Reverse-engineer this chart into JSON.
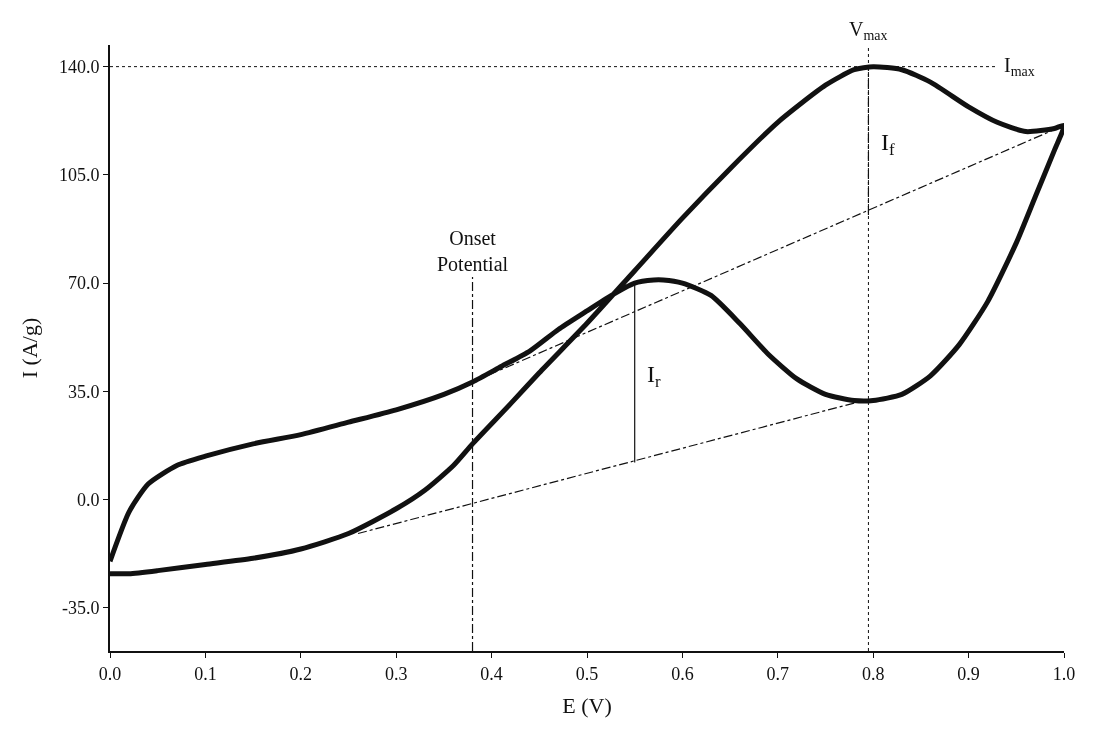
{
  "chart_data": {
    "type": "line",
    "xlabel": "E (V)",
    "ylabel": "I (A/g)",
    "xlim": [
      0,
      1.0
    ],
    "xticks": [
      {
        "value": 0,
        "label": "0.0"
      },
      0.1,
      0.2,
      0.3,
      0.4,
      0.5,
      0.6,
      0.7,
      0.8,
      0.9,
      {
        "value": 1.0,
        "label": "1.0"
      }
    ],
    "ylim": [
      -49,
      147
    ],
    "yticks": [
      {
        "value": -35,
        "label": "-35.0"
      },
      {
        "value": 0,
        "label": "0.0"
      },
      {
        "value": 35,
        "label": "35.0"
      },
      {
        "value": 70,
        "label": "70.0"
      },
      {
        "value": 105,
        "label": "105.0"
      },
      {
        "value": 140,
        "label": "140.0"
      }
    ],
    "marker": "none",
    "series": [
      {
        "color": "#111111",
        "line_style": "solid",
        "x": [
          0.0,
          0.02,
          0.05,
          0.1,
          0.15,
          0.2,
          0.25,
          0.3,
          0.33,
          0.36,
          0.38,
          0.42,
          0.45,
          0.5,
          0.55,
          0.6,
          0.65,
          0.7,
          0.75,
          0.78,
          0.8,
          0.83,
          0.86,
          0.9,
          0.93,
          0.96,
          0.99,
          1.0,
          0.99,
          0.97,
          0.95,
          0.92,
          0.89,
          0.86,
          0.83,
          0.8,
          0.78,
          0.75,
          0.72,
          0.69,
          0.66,
          0.63,
          0.6,
          0.58,
          0.57,
          0.55,
          0.52,
          0.5,
          0.47,
          0.44,
          0.41,
          0.38,
          0.35,
          0.3,
          0.25,
          0.2,
          0.15,
          0.1,
          0.07,
          0.04,
          0.02,
          0.0
        ],
        "values": [
          -24,
          -24,
          -23,
          -21,
          -19,
          -16,
          -11,
          -3,
          3,
          11,
          18,
          31,
          41,
          57,
          74,
          91,
          107,
          122,
          134,
          139,
          140,
          139,
          135,
          127,
          122,
          119,
          120,
          121,
          113,
          98,
          83,
          64,
          50,
          40,
          34,
          32,
          32,
          34,
          39,
          47,
          57,
          66,
          70,
          71,
          71,
          70,
          65,
          61,
          55,
          48,
          43,
          38,
          34,
          29,
          25,
          21,
          18,
          14,
          11,
          5,
          -4,
          -20
        ]
      },
      {
        "color": "#111111",
        "line_style": "dashed",
        "x": [
          0.26,
          0.79
        ],
        "values": [
          -11,
          32
        ]
      },
      {
        "color": "#111111",
        "line_style": "dashed",
        "x": [
          0.38,
          1.0
        ],
        "values": [
          38,
          121
        ]
      },
      {
        "color": "#111111",
        "line_style": "dashed",
        "x": [
          0.38,
          0.38
        ],
        "values": [
          -49,
          72
        ]
      },
      {
        "color": "#111111",
        "line_style": "dashed",
        "x": [
          0.795,
          0.795
        ],
        "values": [
          92,
          140
        ]
      },
      {
        "color": "#111111",
        "line_style": "solid",
        "x": [
          0.55,
          0.55
        ],
        "values": [
          12,
          70
        ]
      }
    ],
    "ref_lines": [
      {
        "axis": "x",
        "value": 0.795,
        "label": "V$_{max}$",
        "line_style": "dotted",
        "color": "#111111"
      },
      {
        "axis": "y",
        "value": 140,
        "label": "I$_{max}$",
        "line_style": "dotted",
        "color": "#111111"
      }
    ],
    "annotations": [
      {
        "text": "Onset\nPotential",
        "x": 0.38,
        "y": 72
      },
      {
        "text": "I$_{f}$",
        "x": 0.8,
        "y": 115
      },
      {
        "text": "I$_{r}$",
        "x": 0.555,
        "y": 40
      }
    ]
  }
}
